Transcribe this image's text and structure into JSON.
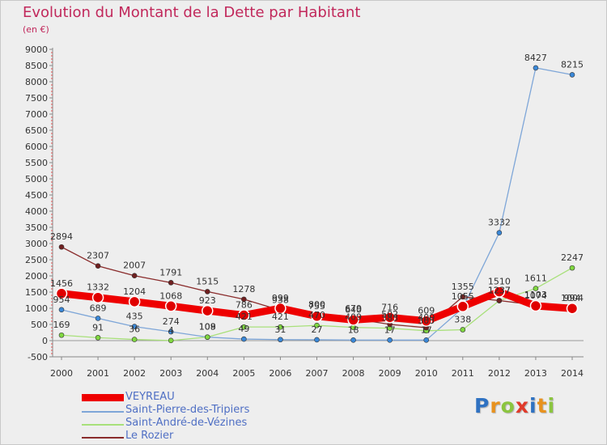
{
  "title": "Evolution du Montant de la Dette par Habitant",
  "subtitle": "(en €)",
  "chart_data": {
    "type": "line",
    "x": [
      "2000",
      "2001",
      "2002",
      "2003",
      "2004",
      "2005",
      "2006",
      "2007",
      "2008",
      "2009",
      "2010",
      "2011",
      "2012",
      "2013",
      "2014"
    ],
    "ylim": [
      -500,
      9000
    ],
    "yticks": [
      -500,
      0,
      500,
      1000,
      1500,
      2000,
      2500,
      3000,
      3500,
      4000,
      4500,
      5000,
      5500,
      6000,
      6500,
      7000,
      7500,
      8000,
      8500,
      9000
    ],
    "grid": false,
    "legend": "bottom-left",
    "series": [
      {
        "name": "VEYREAU",
        "color": "#ee0000",
        "point_color": "#e00000",
        "values": [
          1456,
          1332,
          1204,
          1068,
          923,
          786,
          999,
          755,
          640,
          716,
          609,
          1055,
          1510,
          1074,
          994
        ]
      },
      {
        "name": "Saint-Pierre-des-Tripiers",
        "color": "#7ea6d8",
        "point_color": "#3a88d8",
        "values": [
          954,
          689,
          435,
          274,
          108,
          49,
          31,
          27,
          18,
          17,
          17,
          1010,
          3332,
          8427,
          8215
        ]
      },
      {
        "name": "Saint-André-de-Vézines",
        "color": "#a8e07a",
        "point_color": "#80d840",
        "values": [
          169,
          91,
          36,
          4,
          109,
          421,
          421,
          470,
          409,
          383,
          305,
          338,
          1237,
          1611,
          2247
        ]
      },
      {
        "name": "Le Rozier",
        "color": "#8a2c2c",
        "point_color": "#702020",
        "values": [
          2894,
          2307,
          2007,
          1791,
          1515,
          1278,
          938,
          800,
          679,
          502,
          400,
          1355,
          1237,
          1103,
          1004
        ]
      }
    ],
    "data_labels": [
      {
        "series": 0,
        "values": [
          "1456",
          "1332",
          "1204",
          "1068",
          "923",
          "786",
          "999",
          "755",
          "640",
          "716",
          "609",
          "1055",
          "1510",
          "1074",
          "994"
        ]
      },
      {
        "series": 1,
        "values": [
          "954",
          "689",
          "435",
          "274",
          "108",
          "49",
          "31",
          "27",
          "18",
          "17",
          "17",
          "",
          "3332",
          "8427",
          "8215"
        ]
      },
      {
        "series": 2,
        "values": [
          "169",
          "91",
          "36",
          "4",
          "109",
          "421",
          "421",
          "470",
          "409",
          "383",
          "305",
          "338",
          "1237",
          "1611",
          "2247"
        ]
      },
      {
        "series": 3,
        "values": [
          "2894",
          "2307",
          "2007",
          "1791",
          "1515",
          "1278",
          "938",
          "800",
          "679",
          "502",
          "400",
          "1355",
          "1237",
          "1103",
          "1004"
        ]
      }
    ]
  },
  "logo": {
    "letters": [
      "P",
      "r",
      "o",
      "x",
      "i",
      "t",
      "i"
    ],
    "colors": [
      "#2f72c2",
      "#e8921e",
      "#8bc53f",
      "#e03a2a",
      "#2f72c2",
      "#e8921e",
      "#8bc53f"
    ]
  }
}
